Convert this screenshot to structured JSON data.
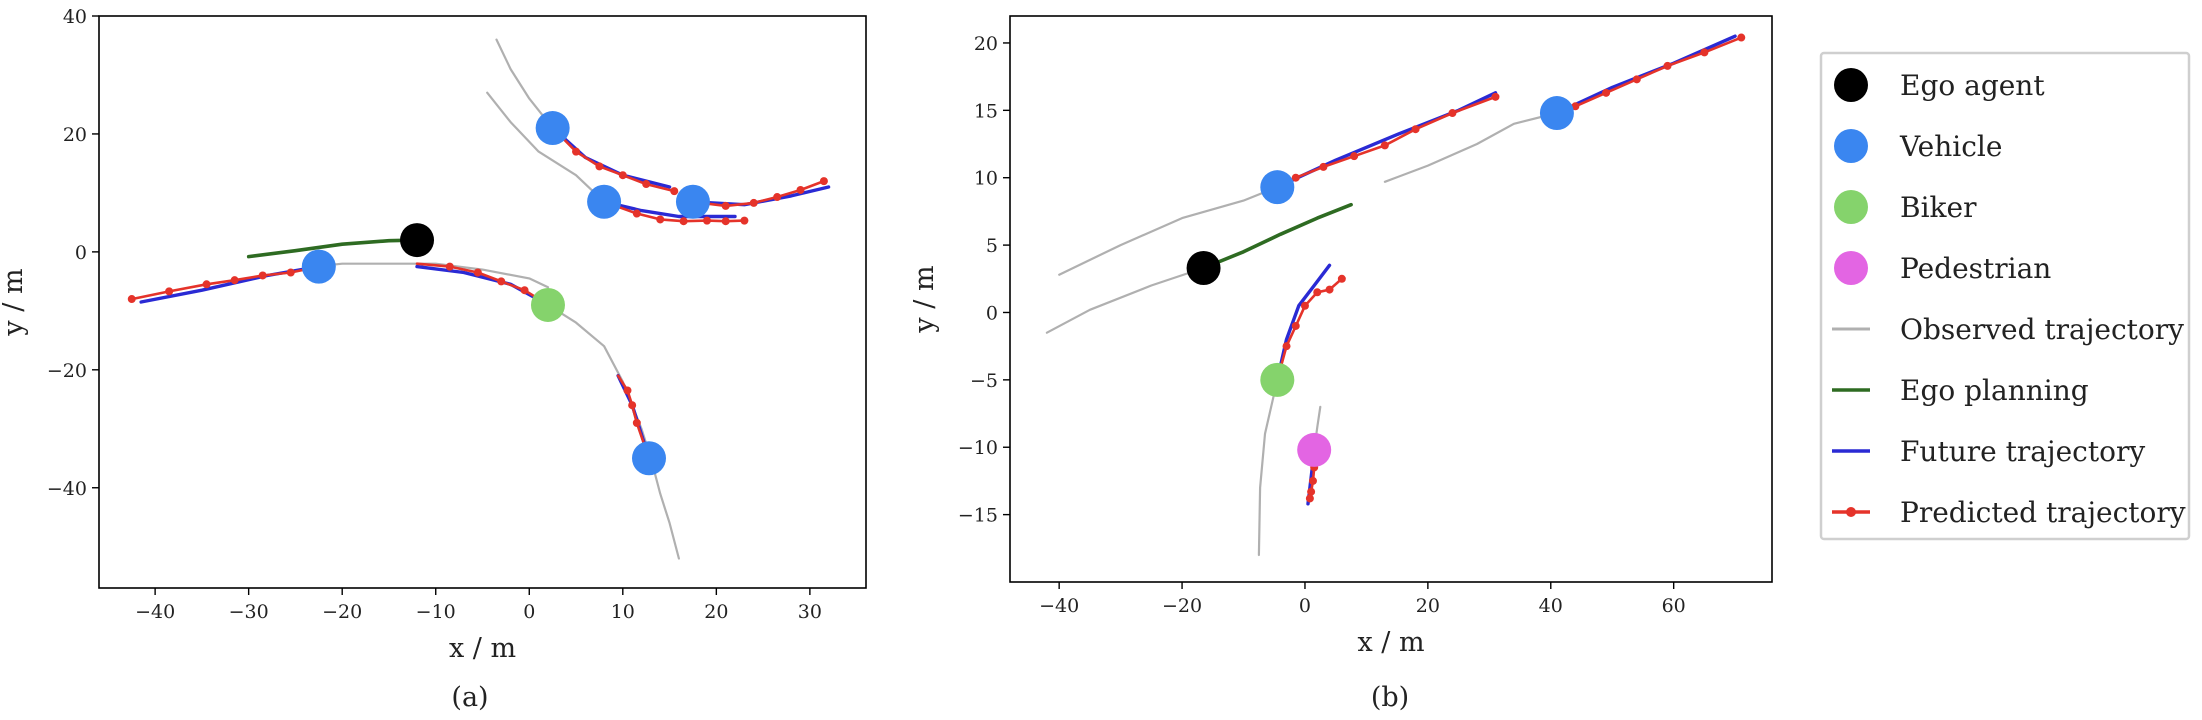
{
  "legend": {
    "entries": [
      {
        "label": "Ego agent",
        "marker": "circle",
        "color": "#000000"
      },
      {
        "label": "Vehicle",
        "marker": "circle",
        "color": "#3a86f0"
      },
      {
        "label": "Biker",
        "marker": "circle",
        "color": "#85d36c"
      },
      {
        "label": "Pedestrian",
        "marker": "circle",
        "color": "#e365e3"
      },
      {
        "label": "Observed trajectory",
        "marker": "line",
        "color": "#b0b0b0"
      },
      {
        "label": "Ego planning",
        "marker": "line",
        "color": "#2e6b22"
      },
      {
        "label": "Future trajectory",
        "marker": "line",
        "color": "#2a2ad4"
      },
      {
        "label": "Predicted trajectory",
        "marker": "line-dot",
        "color": "#e5332a"
      }
    ]
  },
  "colors": {
    "ego": "#000000",
    "vehicle": "#3a86f0",
    "biker": "#85d36c",
    "pedestrian": "#e365e3",
    "observed": "#b0b0b0",
    "planning": "#2e6b22",
    "future": "#2a2ad4",
    "predicted": "#e5332a"
  },
  "chart_data": [
    {
      "type": "line",
      "caption": "(a)",
      "xlabel": "x / m",
      "ylabel": "y / m",
      "xlim": [
        -46,
        36
      ],
      "ylim": [
        -57,
        40
      ],
      "xticks": [
        -40,
        -30,
        -20,
        -10,
        0,
        10,
        20,
        30
      ],
      "yticks": [
        -40,
        -20,
        0,
        20,
        40
      ],
      "xtick_labels": [
        "−40",
        "−30",
        "−20",
        "−10",
        "0",
        "10",
        "20",
        "30"
      ],
      "ytick_labels": [
        "−40",
        "−20",
        "0",
        "20",
        "40"
      ],
      "grid": false,
      "agents": [
        {
          "kind": "ego",
          "position": [
            -12,
            2
          ]
        },
        {
          "kind": "vehicle",
          "position": [
            -22.5,
            -2.5
          ]
        },
        {
          "kind": "vehicle",
          "position": [
            2.5,
            21
          ]
        },
        {
          "kind": "vehicle",
          "position": [
            8,
            8.5
          ]
        },
        {
          "kind": "vehicle",
          "position": [
            17.5,
            8.5
          ]
        },
        {
          "kind": "vehicle",
          "position": [
            12.8,
            -35
          ]
        },
        {
          "kind": "biker",
          "position": [
            2,
            -9
          ]
        }
      ],
      "observed": [
        [
          [
            -3.5,
            36
          ],
          [
            -2,
            31
          ],
          [
            0,
            26
          ],
          [
            2.5,
            21
          ]
        ],
        [
          [
            -4.5,
            27
          ],
          [
            -2,
            22
          ],
          [
            1,
            17
          ],
          [
            5,
            13
          ],
          [
            8,
            8.5
          ]
        ],
        [
          [
            -23,
            -2.5
          ],
          [
            -20,
            -2
          ],
          [
            -15,
            -2
          ],
          [
            -10,
            -2
          ],
          [
            -5,
            -3
          ],
          [
            0,
            -4.5
          ],
          [
            2,
            -6
          ]
        ],
        [
          [
            2,
            -9
          ],
          [
            5,
            -12
          ],
          [
            8,
            -16
          ],
          [
            10,
            -22
          ],
          [
            12,
            -30
          ],
          [
            13,
            -35
          ],
          [
            14,
            -41
          ],
          [
            15,
            -46
          ],
          [
            16,
            -52
          ]
        ]
      ],
      "ego_planning": [
        [
          -30,
          -0.8
        ],
        [
          -25,
          0.2
        ],
        [
          -20,
          1.3
        ],
        [
          -15,
          1.9
        ],
        [
          -12,
          2
        ]
      ],
      "future": [
        [
          [
            -41.5,
            -8.5
          ],
          [
            -35,
            -6.5
          ],
          [
            -28,
            -4
          ],
          [
            -22.5,
            -2.5
          ]
        ],
        [
          [
            -12,
            -2.5
          ],
          [
            -7,
            -3.5
          ],
          [
            -2,
            -5.5
          ],
          [
            2,
            -9
          ]
        ],
        [
          [
            2.5,
            21
          ],
          [
            6,
            16
          ],
          [
            10,
            13
          ],
          [
            15,
            11
          ]
        ],
        [
          [
            8,
            8.5
          ],
          [
            12,
            7
          ],
          [
            16,
            6
          ],
          [
            22,
            6
          ]
        ],
        [
          [
            17.5,
            8.5
          ],
          [
            23,
            8
          ],
          [
            28,
            9.5
          ],
          [
            32,
            11
          ]
        ],
        [
          [
            9.5,
            -21
          ],
          [
            11,
            -26
          ],
          [
            12.8,
            -35
          ]
        ]
      ],
      "predicted": [
        [
          [
            -22.5,
            -2.5
          ],
          [
            -25.5,
            -3.5
          ],
          [
            -28.5,
            -4
          ],
          [
            -31.5,
            -4.8
          ],
          [
            -34.5,
            -5.5
          ],
          [
            -38.5,
            -6.7
          ],
          [
            -42.5,
            -8
          ]
        ],
        [
          [
            -12,
            -2
          ],
          [
            -8.5,
            -2.5
          ],
          [
            -5.5,
            -3.5
          ],
          [
            -3,
            -5
          ],
          [
            -0.5,
            -6.5
          ],
          [
            2,
            -9
          ]
        ],
        [
          [
            2.5,
            21
          ],
          [
            5,
            17
          ],
          [
            7.5,
            14.5
          ],
          [
            10,
            13
          ],
          [
            12.5,
            11.5
          ],
          [
            15.5,
            10.3
          ]
        ],
        [
          [
            8,
            8.5
          ],
          [
            11.5,
            6.5
          ],
          [
            14,
            5.5
          ],
          [
            16.5,
            5.2
          ],
          [
            19,
            5.3
          ],
          [
            21,
            5.2
          ],
          [
            23,
            5.3
          ]
        ],
        [
          [
            17.5,
            8.5
          ],
          [
            21,
            7.8
          ],
          [
            24,
            8.3
          ],
          [
            26.5,
            9.3
          ],
          [
            29,
            10.5
          ],
          [
            31.5,
            12
          ]
        ],
        [
          [
            9.5,
            -21
          ],
          [
            10.5,
            -23.5
          ],
          [
            11,
            -26
          ],
          [
            11.5,
            -29
          ],
          [
            12.8,
            -35
          ]
        ]
      ]
    },
    {
      "type": "line",
      "caption": "(b)",
      "xlabel": "x / m",
      "ylabel": "y / m",
      "xlim": [
        -48,
        76
      ],
      "ylim": [
        -20,
        22
      ],
      "xticks": [
        -40,
        -20,
        0,
        20,
        40,
        60
      ],
      "yticks": [
        -15,
        -10,
        -5,
        0,
        5,
        10,
        15,
        20
      ],
      "xtick_labels": [
        "−40",
        "−20",
        "0",
        "20",
        "40",
        "60"
      ],
      "ytick_labels": [
        "−15",
        "−10",
        "−5",
        "0",
        "5",
        "10",
        "15",
        "20"
      ],
      "grid": false,
      "agents": [
        {
          "kind": "ego",
          "position": [
            -16.5,
            3.3
          ]
        },
        {
          "kind": "vehicle",
          "position": [
            -4.5,
            9.3
          ]
        },
        {
          "kind": "vehicle",
          "position": [
            41,
            14.8
          ]
        },
        {
          "kind": "biker",
          "position": [
            -4.5,
            -5
          ]
        },
        {
          "kind": "pedestrian",
          "position": [
            1.5,
            -10.2
          ]
        }
      ],
      "observed": [
        [
          [
            -42,
            -1.5
          ],
          [
            -35,
            0.2
          ],
          [
            -25,
            2
          ],
          [
            -16.5,
            3.3
          ]
        ],
        [
          [
            -40,
            2.8
          ],
          [
            -30,
            5
          ],
          [
            -20,
            7
          ],
          [
            -10,
            8.3
          ],
          [
            -4.5,
            9.3
          ]
        ],
        [
          [
            13,
            9.7
          ],
          [
            20,
            10.9
          ],
          [
            28,
            12.5
          ],
          [
            34,
            14
          ],
          [
            41,
            14.8
          ]
        ],
        [
          [
            -7.5,
            -18
          ],
          [
            -7.3,
            -13
          ],
          [
            -6.5,
            -9
          ],
          [
            -4.5,
            -5
          ]
        ],
        [
          [
            2.5,
            -7
          ],
          [
            2,
            -8.5
          ],
          [
            1.5,
            -10.2
          ]
        ]
      ],
      "ego_planning": [
        [
          -16.5,
          3.3
        ],
        [
          -10,
          4.5
        ],
        [
          -4,
          5.8
        ],
        [
          2,
          7
        ],
        [
          7.5,
          8
        ]
      ],
      "future": [
        [
          [
            -4.5,
            9.3
          ],
          [
            5,
            11.3
          ],
          [
            15,
            13.2
          ],
          [
            25,
            15
          ],
          [
            31,
            16.3
          ]
        ],
        [
          [
            41,
            14.8
          ],
          [
            50,
            16.7
          ],
          [
            60,
            18.5
          ],
          [
            70,
            20.5
          ]
        ],
        [
          [
            -4.5,
            -5
          ],
          [
            -3,
            -2
          ],
          [
            -1,
            0.5
          ],
          [
            1.5,
            2
          ],
          [
            4,
            3.5
          ]
        ],
        [
          [
            1.5,
            -10.2
          ],
          [
            1.2,
            -11.5
          ],
          [
            0.5,
            -14.2
          ]
        ]
      ],
      "predicted": [
        [
          [
            -4.5,
            9.3
          ],
          [
            -1.5,
            10
          ],
          [
            3,
            10.8
          ],
          [
            8,
            11.6
          ],
          [
            13,
            12.4
          ],
          [
            18,
            13.6
          ],
          [
            24,
            14.8
          ],
          [
            31,
            16
          ]
        ],
        [
          [
            41,
            14.8
          ],
          [
            44,
            15.3
          ],
          [
            49,
            16.3
          ],
          [
            54,
            17.3
          ],
          [
            59,
            18.3
          ],
          [
            65,
            19.3
          ],
          [
            71,
            20.4
          ]
        ],
        [
          [
            -4.5,
            -5
          ],
          [
            -3,
            -2.5
          ],
          [
            -1.5,
            -1
          ],
          [
            0,
            0.5
          ],
          [
            2,
            1.5
          ],
          [
            4,
            1.7
          ],
          [
            6,
            2.5
          ]
        ],
        [
          [
            1.5,
            -10.2
          ],
          [
            1.5,
            -11.5
          ],
          [
            1.3,
            -12.5
          ],
          [
            1,
            -13.3
          ],
          [
            0.8,
            -13.8
          ]
        ]
      ]
    }
  ]
}
